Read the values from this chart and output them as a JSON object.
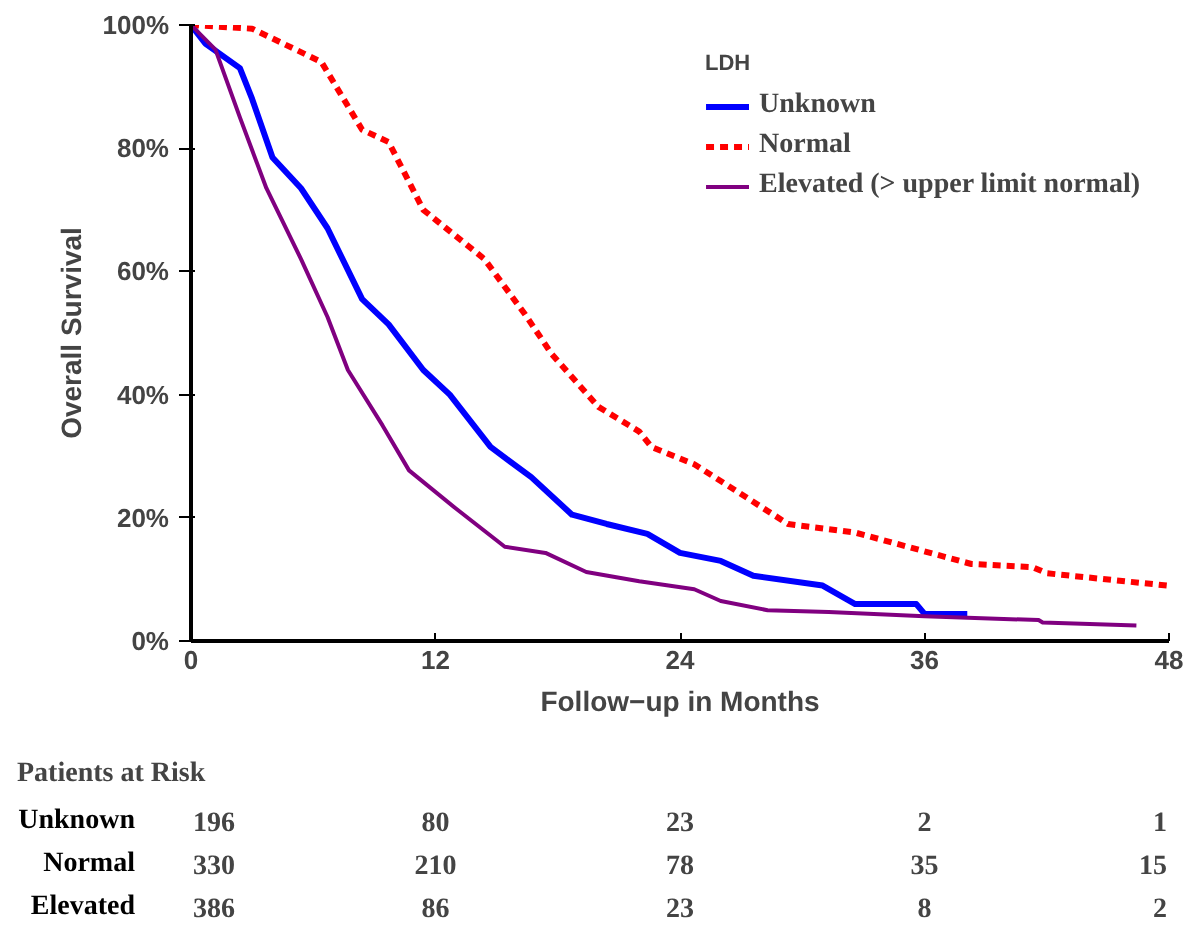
{
  "chart_data": {
    "type": "line",
    "xlabel": "Follow−up in Months",
    "ylabel": "Overall Survival",
    "legend_title": "LDH",
    "legend": "top right",
    "grid": false,
    "xlim": [
      0,
      48
    ],
    "xticks": [
      0,
      12,
      24,
      36,
      48
    ],
    "ylim": [
      0,
      100
    ],
    "yticks": [
      {
        "value": 0,
        "label": "0%"
      },
      {
        "value": 20,
        "label": "20%"
      },
      {
        "value": 40,
        "label": "40%"
      },
      {
        "value": 60,
        "label": "60%"
      },
      {
        "value": 80,
        "label": "80%"
      },
      {
        "value": 100,
        "label": "100%"
      }
    ],
    "series": [
      {
        "name": "Unknown",
        "color": "#0000ff",
        "line_style": "solid",
        "x": [
          0,
          0.7,
          2.4,
          3,
          4,
          5.4,
          6.7,
          8.4,
          9.7,
          11.4,
          12.7,
          14.7,
          16.7,
          18.7,
          20.4,
          22.4,
          24,
          26,
          27.6,
          31,
          32.6,
          35.6,
          36,
          38.1
        ],
        "values": [
          100,
          97,
          93,
          88,
          78.5,
          73.5,
          67,
          55.5,
          51.4,
          44,
          40,
          31.5,
          26.6,
          20.5,
          19,
          17.4,
          14.3,
          13,
          10.6,
          9,
          6,
          6,
          4.4,
          4.4
        ]
      },
      {
        "name": "Normal",
        "color": "#ff0000",
        "line_style": "dashed",
        "x": [
          0,
          3,
          6.4,
          8.4,
          9.7,
          11.4,
          14.4,
          16.4,
          17.7,
          20,
          22,
          22.6,
          24.7,
          29.3,
          32.6,
          38.3,
          41.3,
          42,
          47.9
        ],
        "values": [
          100,
          99.4,
          94,
          83,
          81,
          70,
          62,
          53,
          46.6,
          38,
          34,
          31.5,
          28.7,
          19,
          17.6,
          12.5,
          12,
          11,
          9
        ]
      },
      {
        "name": "Elevated (> upper limit normal)",
        "color": "#800080",
        "line_style": "solid",
        "x": [
          0,
          1.2,
          2.4,
          3.7,
          5.4,
          6.7,
          7.7,
          9.4,
          10.7,
          13,
          15.4,
          17.4,
          19.4,
          22,
          24.7,
          26,
          28.3,
          31.3,
          36,
          41.6,
          41.8,
          46.4
        ],
        "values": [
          100,
          96,
          85,
          73.5,
          62,
          52.6,
          44,
          35,
          27.7,
          21.5,
          15.3,
          14.3,
          11.2,
          9.7,
          8.4,
          6.5,
          5,
          4.7,
          4,
          3.4,
          3,
          2.5
        ]
      }
    ],
    "annotations": [
      "Patients at Risk",
      "Unknown",
      "196",
      "80",
      "23",
      "2",
      "1",
      "Normal",
      "330",
      "210",
      "78",
      "35",
      "15",
      "Elevated",
      "386",
      "86",
      "23",
      "8",
      "2"
    ]
  }
}
